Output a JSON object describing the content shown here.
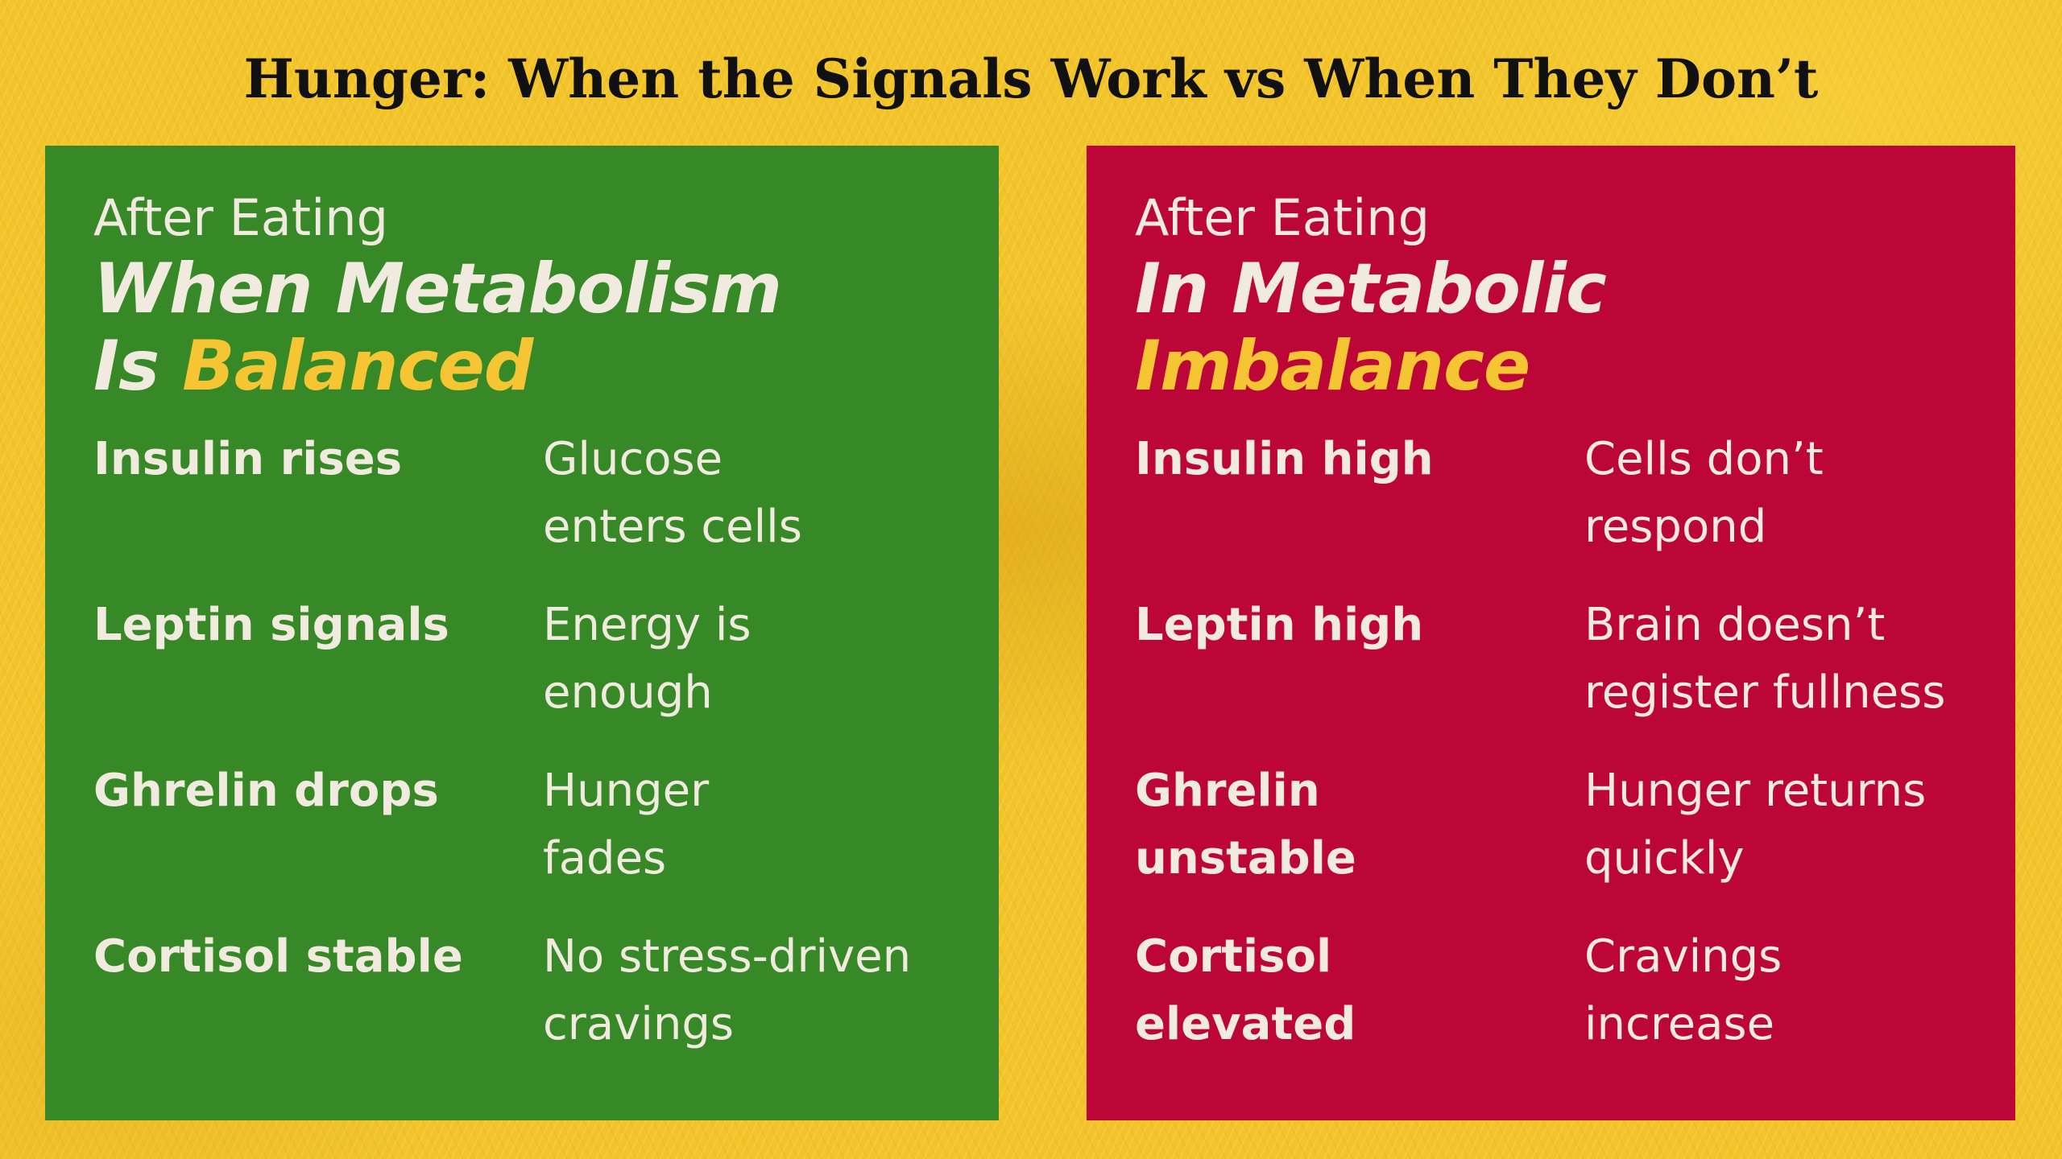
{
  "title": "Hunger: When the Signals Work vs When They Don’t",
  "colors": {
    "background": "#f2c42a",
    "balanced_panel": "#378827",
    "imbalance_panel": "#bb0637",
    "accent_text": "#f6c533",
    "panel_text": "#f1ebdf"
  },
  "balanced": {
    "eyebrow": "After Eating",
    "headline_line1": "When Metabolism",
    "headline_line2_prefix": "Is ",
    "headline_line2_accent": "Balanced",
    "rows": [
      {
        "label": [
          "Insulin rises"
        ],
        "value": [
          "Glucose",
          "enters cells"
        ]
      },
      {
        "label": [
          "Leptin signals"
        ],
        "value": [
          "Energy is",
          "enough"
        ]
      },
      {
        "label": [
          "Ghrelin drops"
        ],
        "value": [
          "Hunger",
          "fades"
        ]
      },
      {
        "label": [
          "Cortisol stable"
        ],
        "value": [
          "No stress-driven",
          "cravings"
        ]
      }
    ]
  },
  "imbalance": {
    "eyebrow": "After Eating",
    "headline_line1": "In Metabolic",
    "headline_line2_accent": "Imbalance",
    "rows": [
      {
        "label": [
          "Insulin high"
        ],
        "value": [
          "Cells don’t",
          "respond"
        ]
      },
      {
        "label": [
          "Leptin high"
        ],
        "value": [
          "Brain doesn’t",
          "register fullness"
        ]
      },
      {
        "label": [
          "Ghrelin",
          "unstable"
        ],
        "value": [
          "Hunger returns",
          "quickly"
        ]
      },
      {
        "label": [
          "Cortisol",
          "elevated"
        ],
        "value": [
          "Cravings",
          "increase"
        ]
      }
    ]
  }
}
